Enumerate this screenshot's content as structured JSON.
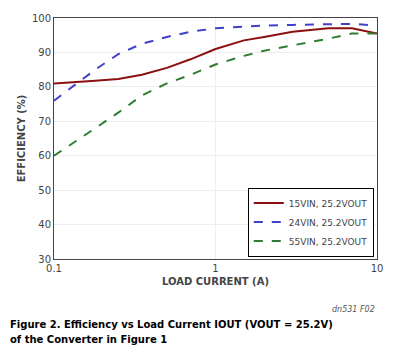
{
  "chart_data": {
    "type": "line",
    "xlabel": "LOAD CURRENT (A)",
    "ylabel": "EFFICIENCY (%)",
    "annotations": [
      "dn531 F02"
    ],
    "caption": [
      "Figure 2. Efficiency vs Load Current IOUT (VOUT = 25.2V)",
      "of the Converter in Figure 1"
    ],
    "x": [
      0.1,
      0.13,
      0.18,
      0.25,
      0.35,
      0.5,
      0.7,
      1.0,
      1.5,
      2.0,
      3.0,
      5.0,
      7.0,
      10.0
    ],
    "series": [
      {
        "name": "15VIN, 25.2VOUT",
        "color": "#8B1010",
        "line_style": "solid",
        "values": [
          81.0,
          81.3,
          81.8,
          82.3,
          83.5,
          85.5,
          88.0,
          91.0,
          93.5,
          94.5,
          96.0,
          97.0,
          97.0,
          95.5
        ]
      },
      {
        "name": "24VIN, 25.2VOUT",
        "color": "#4040CC",
        "line_style": "dashed",
        "values": [
          76.0,
          80.0,
          85.0,
          89.5,
          92.5,
          94.5,
          96.0,
          97.0,
          97.5,
          97.8,
          98.0,
          98.2,
          98.3,
          97.8
        ]
      },
      {
        "name": "55VIN, 25.2VOUT",
        "color": "#2E7D32",
        "line_style": "dashed",
        "values": [
          60.0,
          63.5,
          68.0,
          72.5,
          77.5,
          81.0,
          83.5,
          86.5,
          89.0,
          90.5,
          92.0,
          94.0,
          95.5,
          95.5
        ]
      }
    ],
    "xlim": [
      0.1,
      10
    ],
    "ylim": [
      30,
      100
    ],
    "xticks": [
      0.1,
      1,
      10
    ],
    "yticks": [
      30,
      40,
      50,
      60,
      70,
      80,
      90,
      100
    ],
    "log": "x",
    "grid": true,
    "legend": "lower right"
  }
}
